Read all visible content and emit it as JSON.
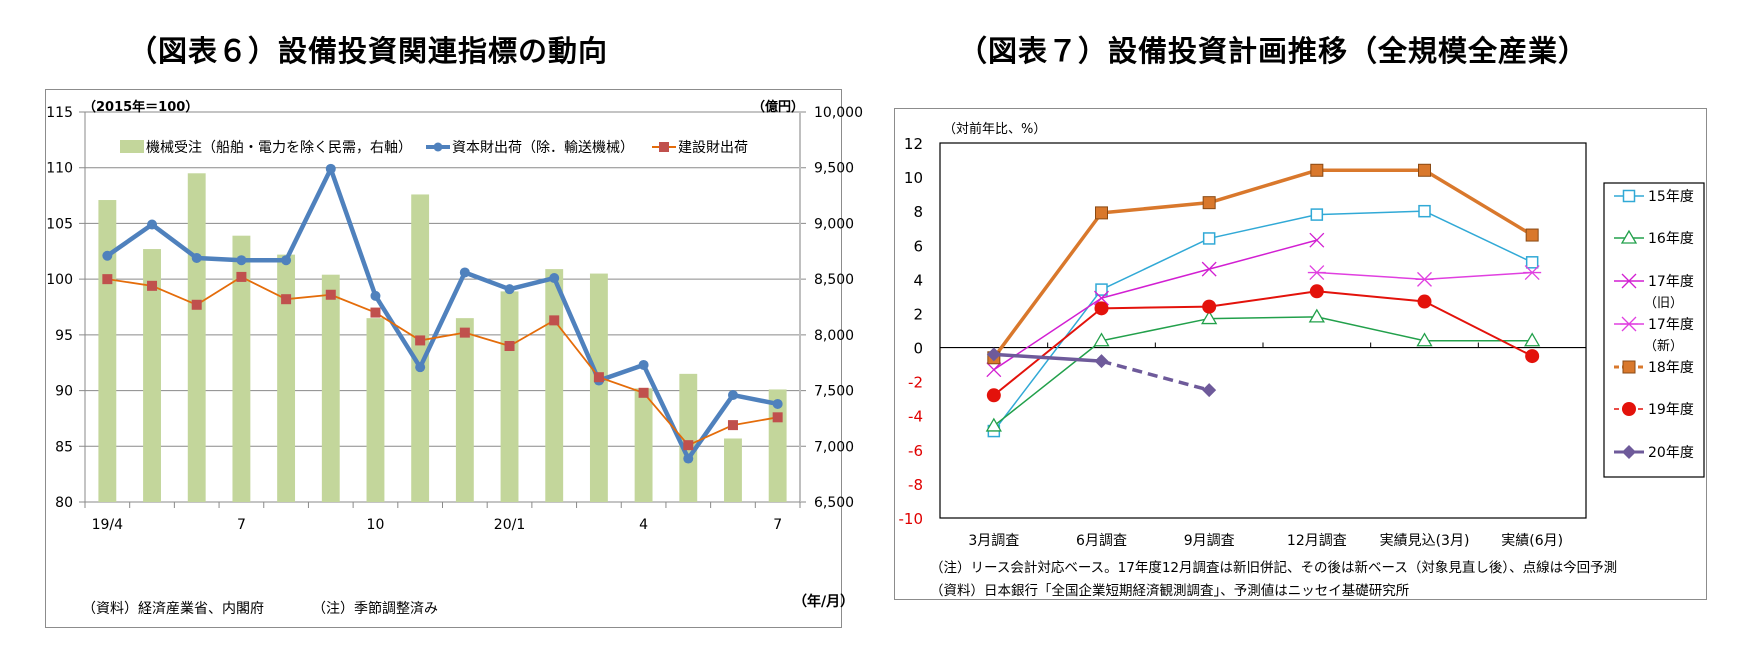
{
  "titles": {
    "fig6": "（図表６）設備投資関連指標の動向",
    "fig7": "（図表７）設備投資計画推移（全規模全産業）"
  },
  "chart_data": [
    {
      "type": "bar",
      "id": "fig6",
      "title": "（図表６）設備投資関連指標の動向",
      "xlabel": "（年/月）",
      "ylabel": "（2015年＝100）",
      "y2label": "（億円）",
      "ylim": [
        80,
        115
      ],
      "y2lim": [
        6500,
        10000
      ],
      "yticks": [
        "80",
        "85",
        "90",
        "95",
        "100",
        "105",
        "110",
        "115"
      ],
      "y2ticks": [
        "6,500",
        "7,000",
        "7,500",
        "8,000",
        "8,500",
        "9,000",
        "9,500",
        "10,000"
      ],
      "grid": true,
      "legend_position": "top",
      "categories": [
        "19/4",
        "5",
        "6",
        "7",
        "8",
        "9",
        "10",
        "11",
        "12",
        "20/1",
        "2",
        "3",
        "4",
        "5",
        "6",
        "7"
      ],
      "xtick_labels": [
        "19/4",
        "",
        "",
        "7",
        "",
        "",
        "10",
        "",
        "",
        "20/1",
        "",
        "",
        "4",
        "",
        "",
        "7"
      ],
      "series": [
        {
          "name": "機械受注（船舶・電力を除く民需，右軸）",
          "type": "bar",
          "axis": "right",
          "color": "#c3d69b",
          "values": [
            9210,
            8770,
            9450,
            8890,
            8720,
            8540,
            8150,
            9260,
            8150,
            8390,
            8590,
            8550,
            7520,
            7650,
            7070,
            7510
          ]
        },
        {
          "name": "資本財出荷（除．輸送機械）",
          "type": "line",
          "axis": "left",
          "color": "#4f81bd",
          "marker": "circle",
          "values": [
            102.1,
            104.9,
            101.9,
            101.7,
            101.7,
            109.9,
            98.5,
            92.1,
            100.6,
            99.1,
            100.1,
            90.9,
            92.3,
            83.9,
            89.6,
            88.8
          ]
        },
        {
          "name": "建設財出荷",
          "type": "line",
          "axis": "left",
          "color": "#e46c0a",
          "marker_color": "#c0504d",
          "marker": "square",
          "values": [
            100.0,
            99.4,
            97.7,
            100.2,
            98.2,
            98.6,
            97.0,
            94.5,
            95.2,
            94.0,
            96.3,
            91.2,
            89.8,
            85.1,
            86.9,
            87.6
          ]
        }
      ],
      "notes": [
        "（資料）経済産業省、内閣府",
        "（注）季節調整済み"
      ]
    },
    {
      "type": "line",
      "id": "fig7",
      "title": "（図表７）設備投資計画推移（全規模全産業）",
      "ylabel": "（対前年比、%）",
      "ylim": [
        -10,
        12
      ],
      "yticks": [
        "-10",
        "-8",
        "-6",
        "-4",
        "-2",
        "0",
        "2",
        "4",
        "6",
        "8",
        "10",
        "12"
      ],
      "ytick_negative_color": "#e00000",
      "grid": false,
      "legend_position": "right",
      "categories": [
        "3月調査",
        "6月調査",
        "9月調査",
        "12月調査",
        "実績見込(3月)",
        "実績(6月)"
      ],
      "series": [
        {
          "name": "15年度",
          "color": "#31a9d6",
          "marker": "open-square",
          "values": [
            -4.9,
            3.4,
            6.4,
            7.8,
            8.0,
            5.0
          ]
        },
        {
          "name": "16年度",
          "color": "#22a04b",
          "marker": "open-triangle",
          "values": [
            -4.6,
            0.4,
            1.7,
            1.8,
            0.4,
            0.4
          ]
        },
        {
          "name": "17年度（旧）",
          "color": "#d21fd2",
          "marker": "x",
          "values": [
            -1.3,
            2.9,
            4.6,
            6.3,
            null,
            null
          ]
        },
        {
          "name": "17年度（新）",
          "color": "#e040e0",
          "marker": "asterisk",
          "values": [
            null,
            null,
            null,
            4.4,
            4.0,
            4.4
          ]
        },
        {
          "name": "18年度",
          "color": "#d9782c",
          "marker": "filled-square",
          "values": [
            -0.6,
            7.9,
            8.5,
            10.4,
            10.4,
            6.6
          ]
        },
        {
          "name": "19年度",
          "color": "#e3120b",
          "marker": "filled-circle",
          "values": [
            -2.8,
            2.3,
            2.4,
            3.3,
            2.7,
            -0.5
          ]
        },
        {
          "name": "20年度",
          "color": "#6e5a9a",
          "marker": "filled-diamond",
          "values": [
            -0.4,
            -0.8,
            null,
            null,
            null,
            null
          ],
          "forecast": {
            "values": [
              null,
              -0.8,
              -2.5,
              null,
              null,
              null
            ],
            "style": "dashed"
          }
        }
      ],
      "legend_labels": [
        {
          "line1": "15年度",
          "line2": ""
        },
        {
          "line1": "16年度",
          "line2": ""
        },
        {
          "line1": "17年度",
          "line2": "（旧）"
        },
        {
          "line1": "17年度",
          "line2": "（新）"
        },
        {
          "line1": "18年度",
          "line2": ""
        },
        {
          "line1": "19年度",
          "line2": ""
        },
        {
          "line1": "20年度",
          "line2": ""
        }
      ],
      "notes": [
        "（注）リース会計対応ベース。17年度12月調査は新旧併記、その後は新ベース（対象見直し後）、点線は今回予測",
        "（資料）日本銀行「全国企業短期経済観測調査」、予測値はニッセイ基礎研究所"
      ]
    }
  ]
}
